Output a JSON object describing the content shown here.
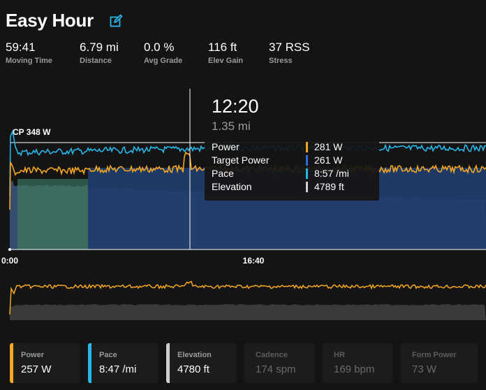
{
  "workout": {
    "title": "Easy Hour"
  },
  "stats": [
    {
      "value": "59:41",
      "label": "Moving Time"
    },
    {
      "value": "6.79 mi",
      "label": "Distance"
    },
    {
      "value": "0.0 %",
      "label": "Avg Grade"
    },
    {
      "value": "116 ft",
      "label": "Elev Gain"
    },
    {
      "value": "37 RSS",
      "label": "Stress"
    }
  ],
  "chart": {
    "cp_label": "CP 348 W",
    "x_ticks": [
      "0:00",
      "16:40"
    ],
    "cursor_time": "12:20"
  },
  "tooltip": {
    "time": "12:20",
    "distance": "1.35 mi",
    "rows": [
      {
        "label": "Power",
        "value": "281 W",
        "color": "#f5a623"
      },
      {
        "label": "Target Power",
        "value": "261 W",
        "color": "#2d6fd6"
      },
      {
        "label": "Pace",
        "value": "8:57 /mi",
        "color": "#29b6e8"
      },
      {
        "label": "Elevation",
        "value": "4789 ft",
        "color": "#cfcfcf"
      }
    ]
  },
  "cards": [
    {
      "label": "Power",
      "value": "257 W",
      "color": "#f5a623",
      "active": true
    },
    {
      "label": "Pace",
      "value": "8:47 /mi",
      "color": "#29b6e8",
      "active": true
    },
    {
      "label": "Elevation",
      "value": "4780 ft",
      "color": "#cfcfcf",
      "active": true
    },
    {
      "label": "Cadence",
      "value": "174 spm",
      "color": "",
      "active": false
    },
    {
      "label": "HR",
      "value": "169 bpm",
      "color": "",
      "active": false
    },
    {
      "label": "Form Power",
      "value": "73 W",
      "color": "",
      "active": false
    }
  ],
  "icons": {
    "edit": "edit-icon"
  }
}
